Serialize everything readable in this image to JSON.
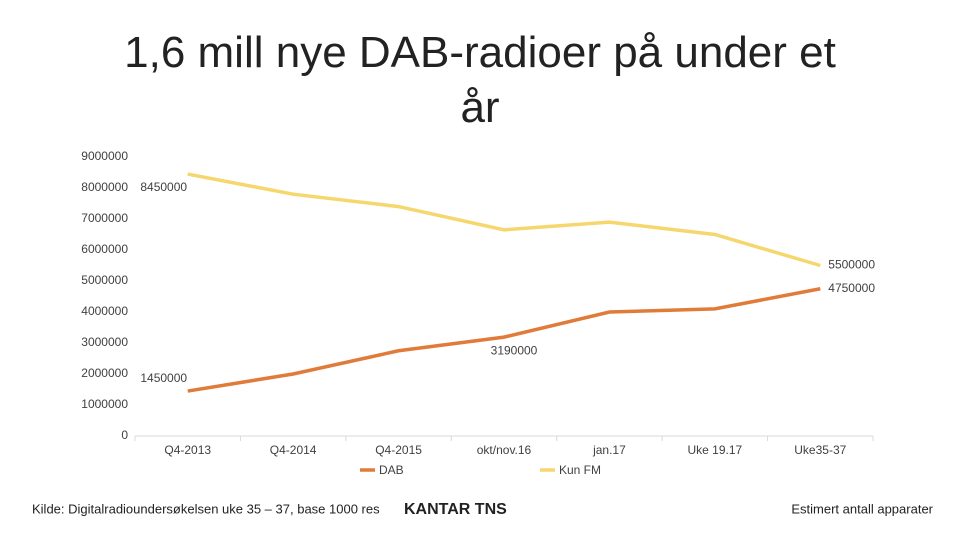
{
  "chart_data": {
    "type": "line",
    "title": "1,6 mill nye DAB-radioer på under et år",
    "categories": [
      "Q4-2013",
      "Q4-2014",
      "Q4-2015",
      "okt/nov.16",
      "jan.17",
      "Uke 19.17",
      "Uke35-37"
    ],
    "series": [
      {
        "name": "DAB",
        "color": "#e07b39",
        "values": [
          1450000,
          2000000,
          2750000,
          3190000,
          4000000,
          4100000,
          4750000
        ],
        "label_points": [
          0,
          3,
          6
        ]
      },
      {
        "name": "Kun FM",
        "color": "#f5d76e",
        "values": [
          8450000,
          7800000,
          7400000,
          6650000,
          6900000,
          6500000,
          5500000
        ],
        "label_points": [
          0,
          6
        ]
      }
    ],
    "ylim": [
      0,
      9000000
    ],
    "yticks": [
      0,
      1000000,
      2000000,
      3000000,
      4000000,
      5000000,
      6000000,
      7000000,
      8000000,
      9000000
    ],
    "grid": false,
    "legend": "bottom"
  },
  "footer": {
    "source": "Kilde: Digitalradioundersøkelsen uke 35 – 37, base 1000 res",
    "logo": "KANTAR TNS",
    "note": "Estimert antall apparater"
  }
}
